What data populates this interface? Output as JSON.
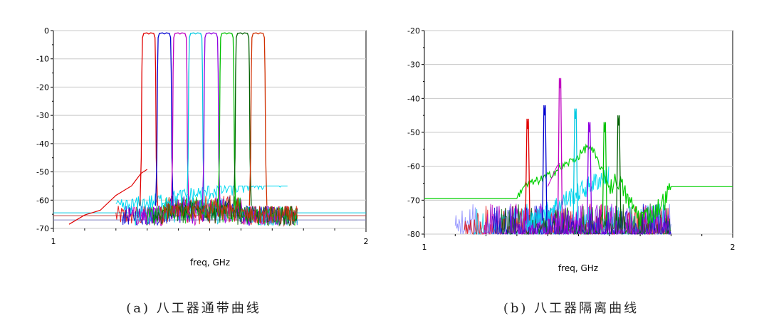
{
  "chart_data": [
    {
      "type": "line",
      "caption": "(a) 八工器通带曲线",
      "xlabel": "freq, GHz",
      "ylabel": "",
      "x_ticks": [
        "1",
        "2"
      ],
      "y_ticks": [
        "0",
        "-10",
        "-20",
        "-30",
        "-40",
        "-50",
        "-60",
        "-70"
      ],
      "xlim": [
        1,
        2
      ],
      "ylim": [
        -70,
        0
      ],
      "grid": true,
      "series": [
        {
          "color": "#e00000",
          "kind": "passband",
          "x": [
            1.05,
            1.1,
            1.15,
            1.2,
            1.25,
            1.28,
            1.3,
            1.31,
            1.35,
            1.345,
            1.355,
            1.4,
            1.5,
            1.6,
            1.7,
            1.8,
            1.9,
            2.0
          ],
          "y": [
            -68,
            -66,
            -63,
            -59,
            -54,
            -51,
            -50,
            -1,
            -1,
            -60,
            -62,
            -64,
            -62,
            -62,
            -62,
            -62,
            -62,
            -62
          ]
        },
        {
          "color": "#0000d0",
          "kind": "passband",
          "center": 1.37,
          "width": 0.044
        },
        {
          "color": "#c000c0",
          "kind": "passband",
          "center": 1.42,
          "width": 0.044
        },
        {
          "color": "#00c8e0",
          "kind": "passband",
          "center": 1.47,
          "width": 0.044
        },
        {
          "color": "#9000e0",
          "kind": "passband",
          "center": 1.52,
          "width": 0.044
        },
        {
          "color": "#00c000",
          "kind": "passband",
          "center": 1.57,
          "width": 0.044
        },
        {
          "color": "#006000",
          "kind": "passband",
          "center": 1.62,
          "width": 0.044
        },
        {
          "color": "#d03000",
          "kind": "passband",
          "center": 1.67,
          "width": 0.044
        }
      ],
      "reference_lines": [
        {
          "color": "#00c8e0",
          "y": -64.5
        },
        {
          "color": "#c04040",
          "y": -65.5
        },
        {
          "color": "#8080c0",
          "y": -67
        }
      ]
    },
    {
      "type": "line",
      "caption": "(b) 八工器隔离曲线",
      "xlabel": "freq, GHz",
      "ylabel": "",
      "x_ticks": [
        "1",
        "2"
      ],
      "y_ticks": [
        "-20",
        "-30",
        "-40",
        "-50",
        "-60",
        "-70",
        "-80"
      ],
      "xlim": [
        1,
        2
      ],
      "ylim": [
        -80,
        -20
      ],
      "grid": true,
      "peaks": [
        {
          "color": "#e00000",
          "x": 1.335,
          "y": -49
        },
        {
          "color": "#0000d0",
          "x": 1.39,
          "y": -45
        },
        {
          "color": "#c000c0",
          "x": 1.44,
          "y": -37
        },
        {
          "color": "#00c8e0",
          "x": 1.49,
          "y": -46
        },
        {
          "color": "#9000e0",
          "x": 1.535,
          "y": -50
        },
        {
          "color": "#00c000",
          "x": 1.585,
          "y": -50
        },
        {
          "color": "#006000",
          "x": 1.63,
          "y": -48
        }
      ],
      "green_envelope": {
        "color": "#00d000",
        "x": [
          1.0,
          1.3,
          1.32,
          1.4,
          1.45,
          1.5,
          1.53,
          1.55,
          1.58,
          1.6,
          1.63,
          1.66,
          1.7,
          1.74,
          1.78,
          1.8,
          2.0
        ],
        "y": [
          -69.5,
          -69.5,
          -66,
          -63,
          -60,
          -57,
          -54,
          -56,
          -62,
          -66,
          -64,
          -70,
          -75,
          -74,
          -70,
          -66,
          -66
        ]
      },
      "noise_floor": -80
    }
  ]
}
